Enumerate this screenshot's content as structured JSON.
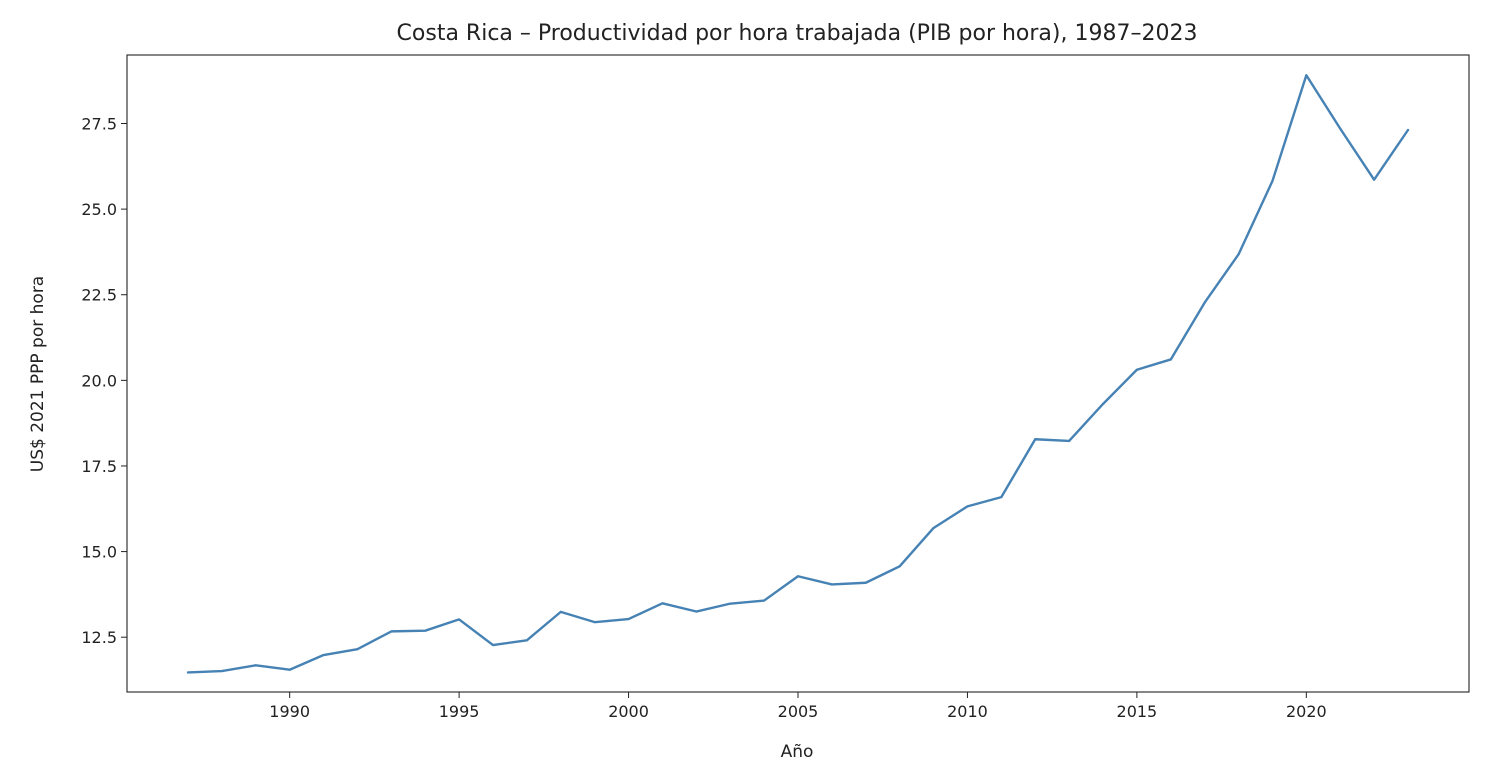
{
  "chart_data": {
    "type": "line",
    "title": "Costa Rica – Productividad por hora trabajada (PIB por hora), 1987–2023",
    "xlabel": "Año",
    "ylabel": "US$ 2021 PPP por hora",
    "xlim": [
      1985.2,
      2024.8
    ],
    "ylim": [
      10.9,
      29.5
    ],
    "xticks": [
      1990,
      1995,
      2000,
      2005,
      2010,
      2015,
      2020
    ],
    "yticks": [
      12.5,
      15.0,
      17.5,
      20.0,
      22.5,
      25.0,
      27.5
    ],
    "ytick_labels": [
      "12.5",
      "15.0",
      "17.5",
      "20.0",
      "22.5",
      "25.0",
      "27.5"
    ],
    "grid": false,
    "colors": {
      "line": "#4682b4"
    },
    "series": [
      {
        "x": [
          1987,
          1988,
          1989,
          1990,
          1991,
          1992,
          1993,
          1994,
          1995,
          1996,
          1997,
          1998,
          1999,
          2000,
          2001,
          2002,
          2003,
          2004,
          2005,
          2006,
          2007,
          2008,
          2009,
          2010,
          2011,
          2012,
          2013,
          2014,
          2015,
          2016,
          2017,
          2018,
          2019,
          2020,
          2021,
          2022,
          2023
        ],
        "values": [
          11.47,
          11.51,
          11.68,
          11.55,
          11.98,
          12.15,
          12.67,
          12.69,
          13.02,
          12.27,
          12.41,
          13.24,
          12.94,
          13.03,
          13.49,
          13.25,
          13.48,
          13.57,
          14.28,
          14.04,
          14.09,
          14.57,
          15.69,
          16.32,
          16.59,
          18.28,
          18.23,
          19.31,
          20.31,
          20.61,
          22.27,
          23.68,
          25.82,
          28.91,
          27.35,
          25.86,
          27.31
        ]
      }
    ]
  }
}
